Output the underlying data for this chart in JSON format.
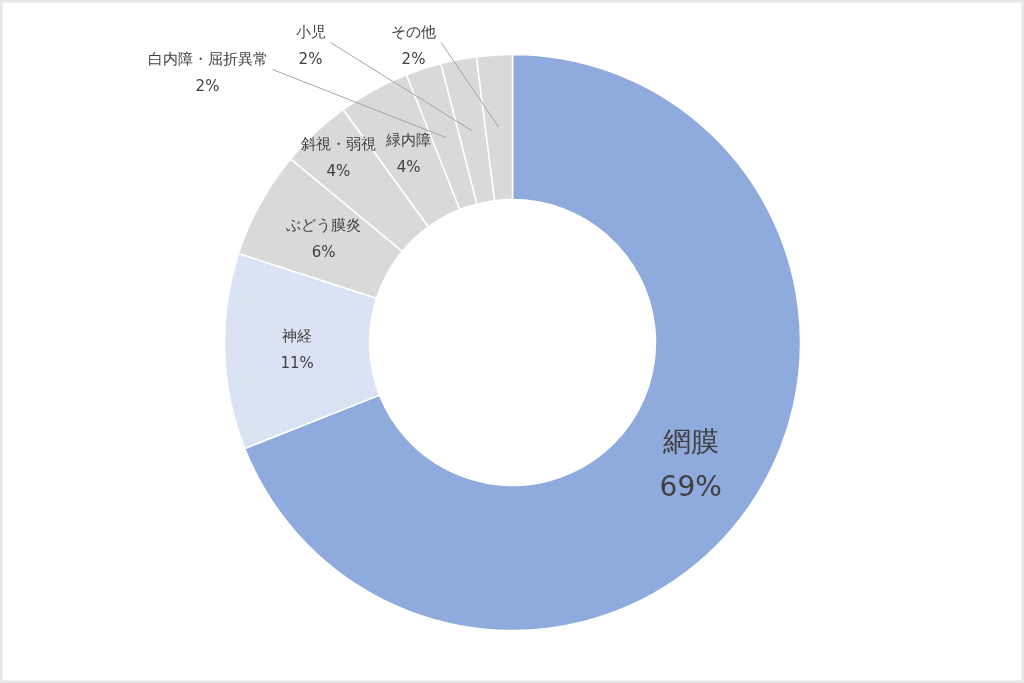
{
  "chart_data": {
    "type": "donut",
    "categories": [
      "網膜",
      "神経",
      "ぶどう膜炎",
      "斜視・弱視",
      "緑内障",
      "白内障・屈折異常",
      "小児",
      "その他"
    ],
    "values": [
      69,
      11,
      6,
      4,
      4,
      2,
      2,
      2
    ],
    "colors": [
      "#8faadc",
      "#dae3f3",
      "#d9d9d9",
      "#d9d9d9",
      "#d9d9d9",
      "#d9d9d9",
      "#d9d9d9",
      "#d9d9d9"
    ],
    "value_labels": [
      "69%",
      "11%",
      "6%",
      "4%",
      "4%",
      "2%",
      "2%",
      "2%"
    ]
  }
}
